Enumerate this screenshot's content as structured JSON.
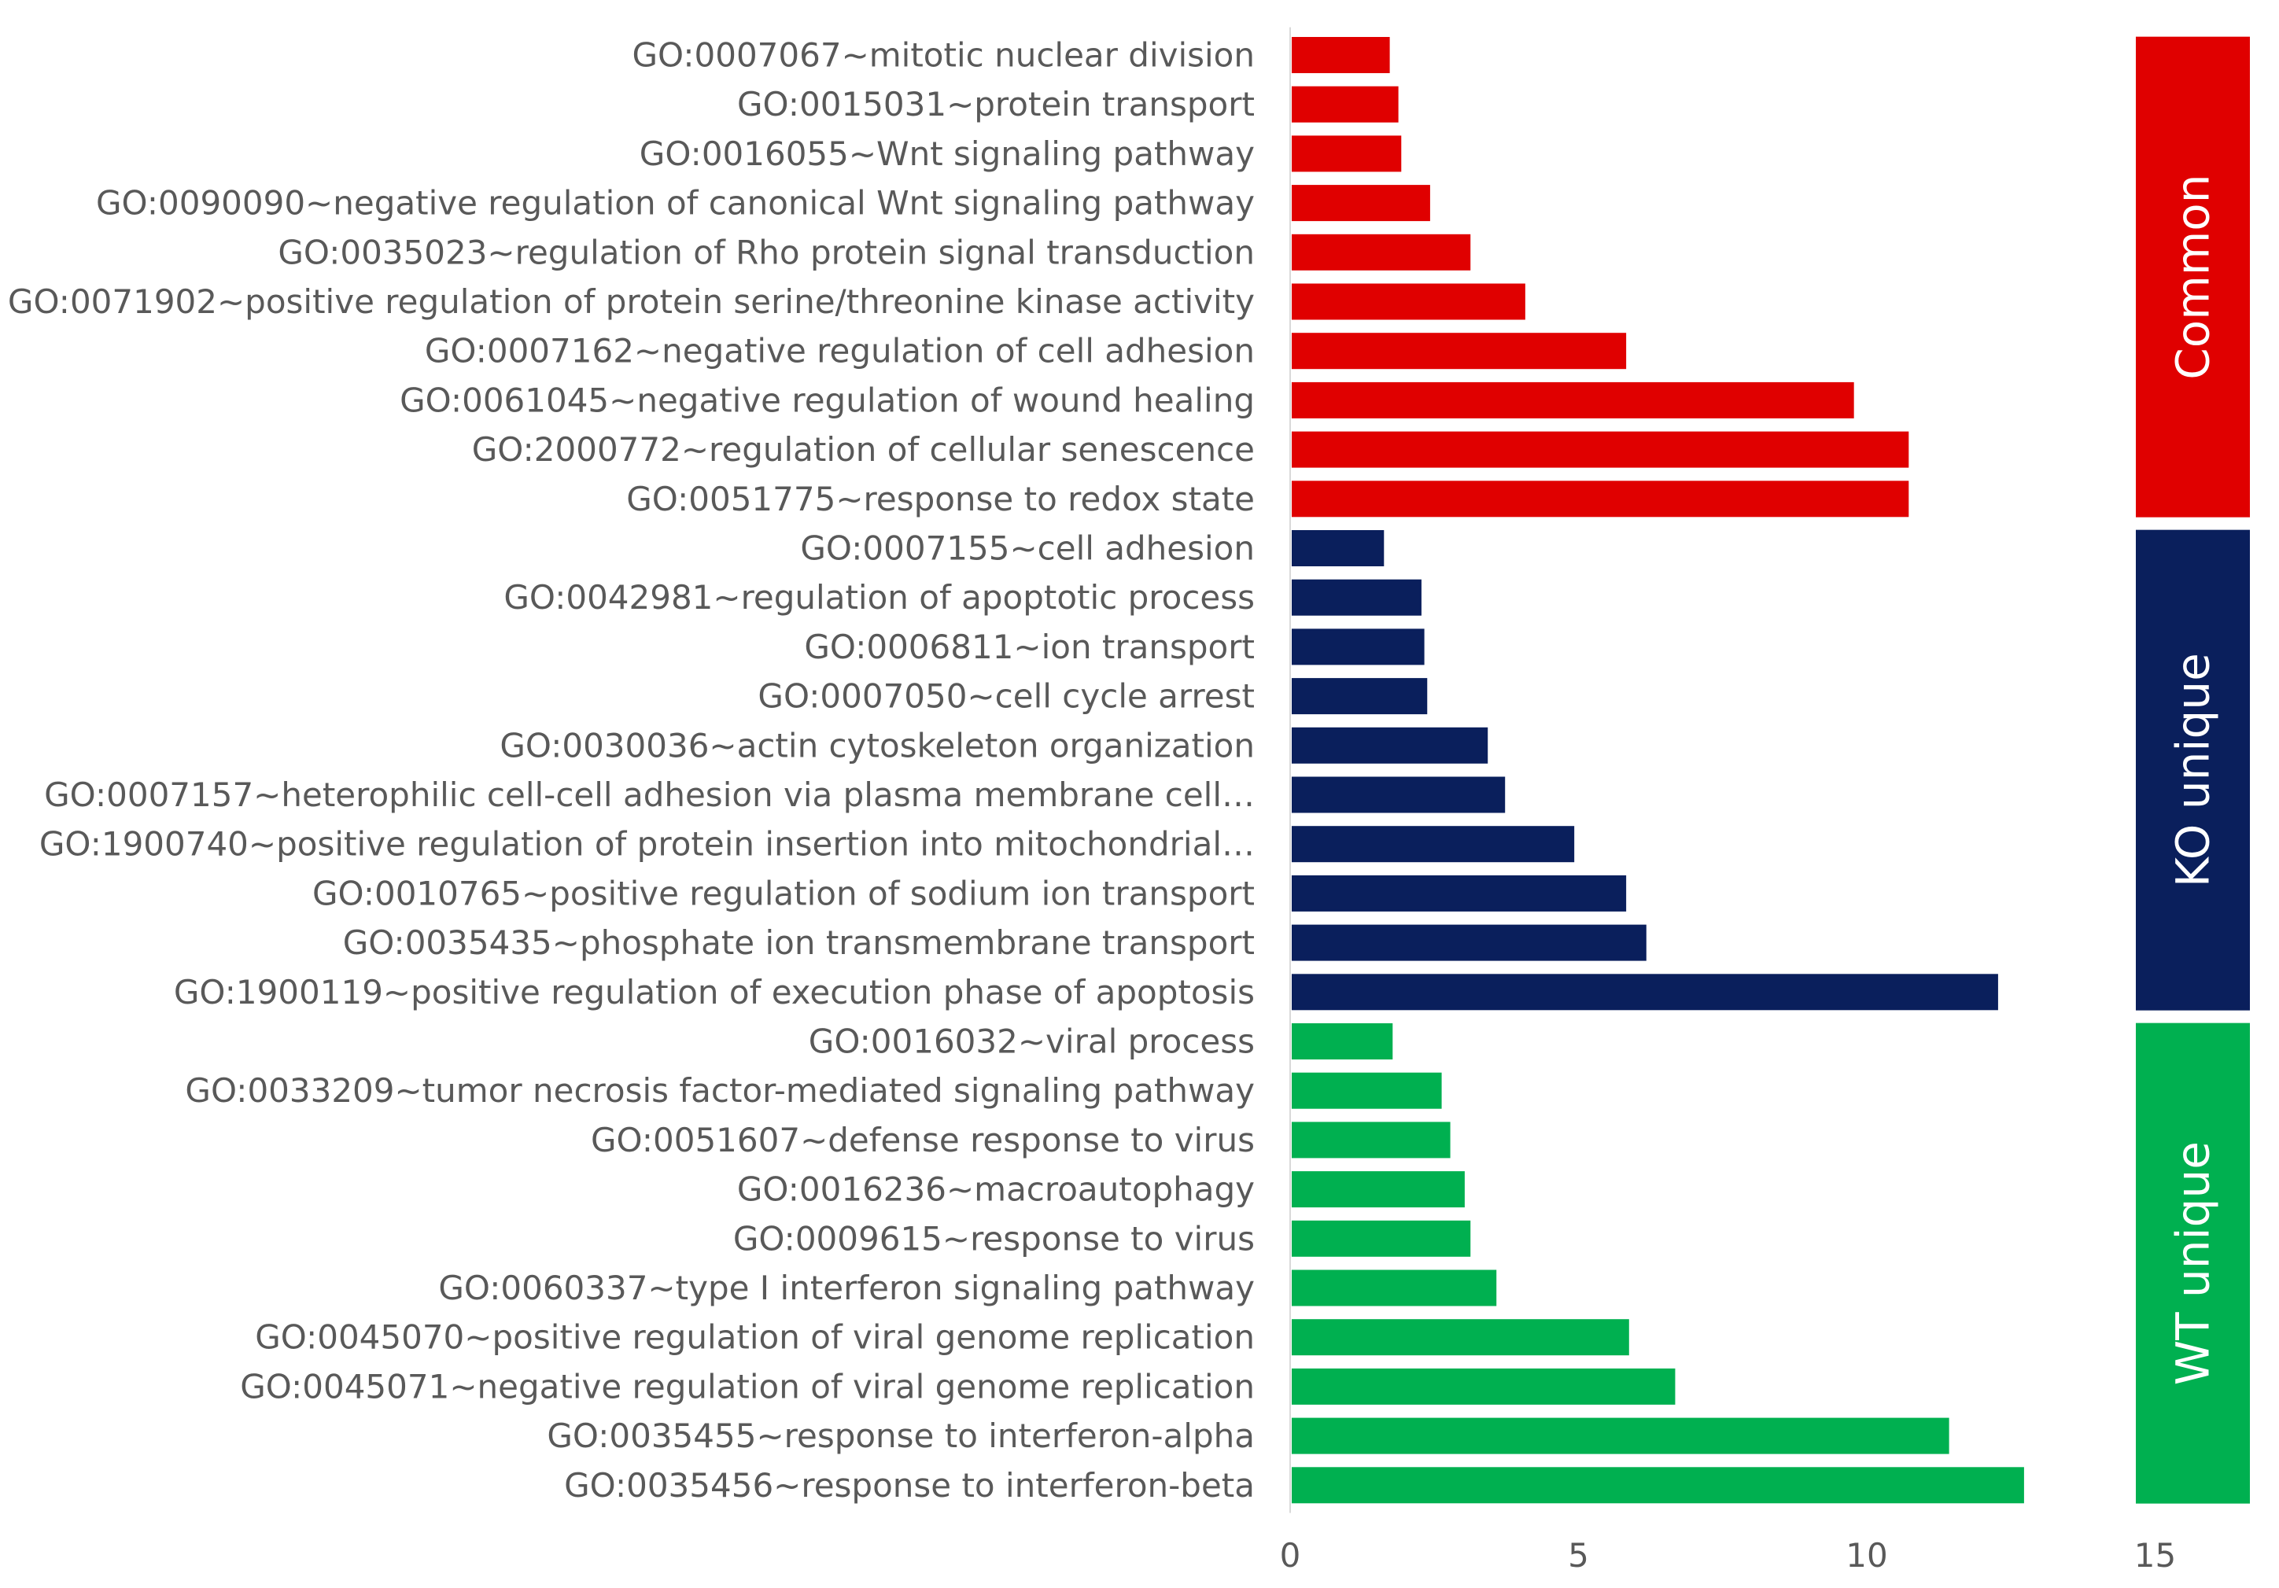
{
  "chart_data": {
    "type": "bar",
    "orientation": "horizontal",
    "title": "",
    "xlabel": "",
    "ylabel": "",
    "xlim": [
      0,
      15
    ],
    "xticks": [
      "0",
      "5",
      "10",
      "15"
    ],
    "grid": false,
    "legend": "none",
    "groups": [
      {
        "name": "Common",
        "color": "#E00000",
        "items": [
          {
            "label": "GO:0007067~mitotic nuclear division",
            "value": 1.7
          },
          {
            "label": "GO:0015031~protein transport",
            "value": 1.85
          },
          {
            "label": "GO:0016055~Wnt signaling pathway",
            "value": 1.9
          },
          {
            "label": "GO:0090090~negative regulation of canonical Wnt signaling pathway",
            "value": 2.4
          },
          {
            "label": "GO:0035023~regulation of Rho protein signal transduction",
            "value": 3.1
          },
          {
            "label": "GO:0071902~positive regulation of protein serine/threonine kinase activity",
            "value": 4.05
          },
          {
            "label": "GO:0007162~negative regulation of cell adhesion",
            "value": 5.8
          },
          {
            "label": "GO:0061045~negative regulation of wound healing",
            "value": 9.75
          },
          {
            "label": "GO:2000772~regulation of cellular senescence",
            "value": 10.7
          },
          {
            "label": "GO:0051775~response to redox state",
            "value": 10.7
          }
        ]
      },
      {
        "name": "KO unique",
        "color": "#0A1F5C",
        "items": [
          {
            "label": "GO:0007155~cell adhesion",
            "value": 1.6
          },
          {
            "label": "GO:0042981~regulation of apoptotic process",
            "value": 2.25
          },
          {
            "label": "GO:0006811~ion transport",
            "value": 2.3
          },
          {
            "label": "GO:0007050~cell cycle arrest",
            "value": 2.35
          },
          {
            "label": "GO:0030036~actin cytoskeleton organization",
            "value": 3.4
          },
          {
            "label": "GO:0007157~heterophilic cell-cell adhesion via plasma membrane cell…",
            "value": 3.7
          },
          {
            "label": "GO:1900740~positive regulation of protein insertion into mitochondrial…",
            "value": 4.9
          },
          {
            "label": "GO:0010765~positive regulation of sodium ion transport",
            "value": 5.8
          },
          {
            "label": "GO:0035435~phosphate ion transmembrane transport",
            "value": 6.15
          },
          {
            "label": "GO:1900119~positive regulation of execution phase of apoptosis",
            "value": 12.25
          }
        ]
      },
      {
        "name": "WT unique",
        "color": "#00B050",
        "items": [
          {
            "label": "GO:0016032~viral process",
            "value": 1.75
          },
          {
            "label": "GO:0033209~tumor necrosis factor-mediated signaling pathway",
            "value": 2.6
          },
          {
            "label": "GO:0051607~defense response to virus",
            "value": 2.75
          },
          {
            "label": "GO:0016236~macroautophagy",
            "value": 3.0
          },
          {
            "label": "GO:0009615~response to virus",
            "value": 3.1
          },
          {
            "label": "GO:0060337~type I interferon signaling pathway",
            "value": 3.55
          },
          {
            "label": "GO:0045070~positive regulation of viral genome replication",
            "value": 5.85
          },
          {
            "label": "GO:0045071~negative regulation of viral genome replication",
            "value": 6.65
          },
          {
            "label": "GO:0035455~response to interferon-alpha",
            "value": 11.4
          },
          {
            "label": "GO:0035456~response to interferon-beta",
            "value": 12.7
          }
        ]
      }
    ]
  }
}
